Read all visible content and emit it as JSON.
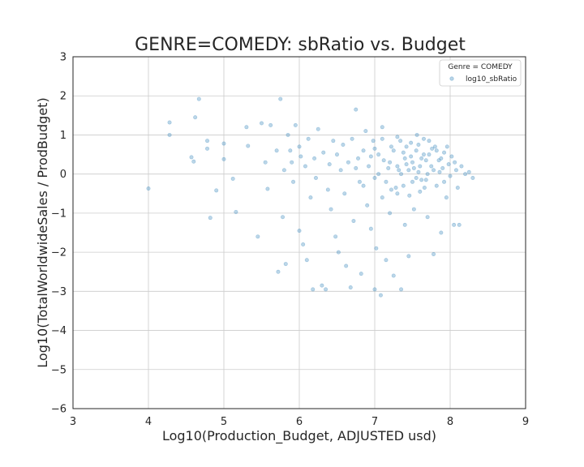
{
  "chart_data": {
    "type": "scatter",
    "title": "GENRE=COMEDY: sbRatio vs. Budget",
    "xlabel": "Log10(Production_Budget, ADJUSTED usd)",
    "ylabel": "Log10(TotalWorldwideSales / ProdBudget)",
    "xlim": [
      3,
      9
    ],
    "ylim": [
      -6,
      3
    ],
    "xticks": [
      "3",
      "4",
      "5",
      "6",
      "7",
      "8",
      "9"
    ],
    "yticks": [
      "3",
      "2",
      "1",
      "0",
      "−1",
      "−2",
      "−3",
      "−4",
      "−5",
      "−6"
    ],
    "grid": true,
    "legend": {
      "position": "top-right",
      "title": "Genre = COMEDY",
      "entries": [
        "log10_sbRatio"
      ]
    },
    "colors": {
      "point": "#1f77b4",
      "grid": "#cccccc",
      "text": "#262626"
    },
    "series": [
      {
        "name": "log10_sbRatio",
        "points": [
          [
            4.0,
            -0.37
          ],
          [
            4.28,
            1.32
          ],
          [
            4.28,
            1.0
          ],
          [
            4.62,
            1.45
          ],
          [
            4.67,
            1.92
          ],
          [
            4.57,
            0.43
          ],
          [
            4.6,
            0.32
          ],
          [
            4.78,
            0.85
          ],
          [
            4.78,
            0.65
          ],
          [
            4.82,
            -1.12
          ],
          [
            4.9,
            -0.42
          ],
          [
            5.0,
            0.78
          ],
          [
            5.0,
            0.38
          ],
          [
            5.12,
            -0.12
          ],
          [
            5.16,
            -0.97
          ],
          [
            5.3,
            1.2
          ],
          [
            5.32,
            0.72
          ],
          [
            5.45,
            -1.6
          ],
          [
            5.5,
            1.3
          ],
          [
            5.55,
            0.3
          ],
          [
            5.58,
            -0.38
          ],
          [
            5.62,
            1.25
          ],
          [
            5.7,
            0.6
          ],
          [
            5.72,
            -2.5
          ],
          [
            5.75,
            1.92
          ],
          [
            5.78,
            -1.1
          ],
          [
            5.8,
            0.1
          ],
          [
            5.82,
            -2.3
          ],
          [
            5.85,
            1.0
          ],
          [
            5.88,
            0.6
          ],
          [
            5.9,
            0.3
          ],
          [
            5.92,
            -0.2
          ],
          [
            5.95,
            1.25
          ],
          [
            6.0,
            0.7
          ],
          [
            6.0,
            -1.45
          ],
          [
            6.02,
            0.45
          ],
          [
            6.05,
            -1.8
          ],
          [
            6.08,
            0.2
          ],
          [
            6.1,
            -2.2
          ],
          [
            6.12,
            0.9
          ],
          [
            6.15,
            -0.6
          ],
          [
            6.18,
            -2.95
          ],
          [
            6.2,
            0.4
          ],
          [
            6.22,
            -0.1
          ],
          [
            6.25,
            1.15
          ],
          [
            6.3,
            -2.85
          ],
          [
            6.32,
            0.55
          ],
          [
            6.35,
            -2.95
          ],
          [
            6.38,
            -0.4
          ],
          [
            6.4,
            0.25
          ],
          [
            6.42,
            -0.9
          ],
          [
            6.45,
            0.85
          ],
          [
            6.48,
            -1.6
          ],
          [
            6.5,
            0.5
          ],
          [
            6.52,
            -2.0
          ],
          [
            6.55,
            0.1
          ],
          [
            6.58,
            0.75
          ],
          [
            6.6,
            -0.5
          ],
          [
            6.62,
            -2.35
          ],
          [
            6.65,
            0.3
          ],
          [
            6.68,
            -2.9
          ],
          [
            6.7,
            0.9
          ],
          [
            6.72,
            -1.2
          ],
          [
            6.75,
            1.65
          ],
          [
            6.78,
            0.4
          ],
          [
            6.8,
            -0.2
          ],
          [
            6.82,
            -2.55
          ],
          [
            6.85,
            0.6
          ],
          [
            6.88,
            1.1
          ],
          [
            6.9,
            -0.8
          ],
          [
            6.92,
            0.2
          ],
          [
            6.95,
            -1.4
          ],
          [
            6.98,
            0.85
          ],
          [
            7.0,
            -2.95
          ],
          [
            7.0,
            -0.1
          ],
          [
            7.02,
            -1.9
          ],
          [
            7.05,
            0.5
          ],
          [
            7.08,
            -3.1
          ],
          [
            7.1,
            1.2
          ],
          [
            7.1,
            -0.6
          ],
          [
            7.12,
            0.35
          ],
          [
            7.15,
            -2.2
          ],
          [
            7.18,
            0.15
          ],
          [
            7.2,
            -1.0
          ],
          [
            7.22,
            0.7
          ],
          [
            7.25,
            -2.6
          ],
          [
            7.28,
            -0.35
          ],
          [
            7.3,
            0.95
          ],
          [
            7.32,
            0.1
          ],
          [
            7.35,
            -2.95
          ],
          [
            7.38,
            0.55
          ],
          [
            7.4,
            -1.3
          ],
          [
            7.42,
            0.25
          ],
          [
            7.45,
            -2.1
          ],
          [
            7.48,
            0.8
          ],
          [
            7.5,
            -0.2
          ],
          [
            7.52,
            -0.9
          ],
          [
            7.55,
            0.6
          ],
          [
            7.58,
            0.05
          ],
          [
            7.6,
            -0.45
          ],
          [
            7.62,
            0.4
          ],
          [
            7.65,
            0.9
          ],
          [
            7.68,
            -0.15
          ],
          [
            7.7,
            -1.1
          ],
          [
            7.72,
            0.5
          ],
          [
            7.75,
            0.2
          ],
          [
            7.78,
            -2.05
          ],
          [
            7.8,
            0.7
          ],
          [
            7.82,
            -0.3
          ],
          [
            7.85,
            0.35
          ],
          [
            7.88,
            -1.5
          ],
          [
            7.9,
            0.15
          ],
          [
            7.92,
            0.55
          ],
          [
            7.95,
            -0.6
          ],
          [
            7.98,
            0.25
          ],
          [
            8.0,
            -0.05
          ],
          [
            8.02,
            0.45
          ],
          [
            8.05,
            -1.3
          ],
          [
            8.08,
            0.1
          ],
          [
            8.1,
            -0.35
          ],
          [
            8.12,
            -1.3
          ],
          [
            8.15,
            0.2
          ],
          [
            8.2,
            0.0
          ],
          [
            8.25,
            0.05
          ],
          [
            8.3,
            -0.1
          ],
          [
            7.3,
            0.2
          ],
          [
            7.35,
            0.0
          ],
          [
            7.4,
            0.4
          ],
          [
            7.45,
            0.1
          ],
          [
            7.5,
            0.3
          ],
          [
            7.55,
            -0.1
          ],
          [
            7.6,
            0.2
          ],
          [
            7.65,
            0.5
          ],
          [
            7.7,
            0.0
          ],
          [
            7.25,
            0.6
          ],
          [
            7.2,
            0.3
          ],
          [
            7.15,
            -0.2
          ],
          [
            7.38,
            -0.3
          ],
          [
            7.42,
            0.7
          ],
          [
            7.48,
            0.45
          ],
          [
            7.52,
            0.15
          ],
          [
            7.58,
            0.75
          ],
          [
            7.62,
            -0.15
          ],
          [
            7.68,
            0.35
          ],
          [
            7.72,
            0.85
          ],
          [
            7.78,
            0.1
          ],
          [
            7.82,
            0.6
          ],
          [
            7.88,
            0.4
          ],
          [
            7.92,
            -0.2
          ],
          [
            7.3,
            -0.5
          ],
          [
            7.05,
            0.0
          ],
          [
            6.95,
            0.45
          ],
          [
            6.85,
            -0.3
          ],
          [
            6.75,
            0.15
          ],
          [
            7.0,
            0.65
          ],
          [
            7.1,
            0.9
          ],
          [
            7.22,
            -0.4
          ],
          [
            7.34,
            0.85
          ],
          [
            7.46,
            -0.55
          ],
          [
            7.56,
            1.0
          ],
          [
            7.66,
            -0.35
          ],
          [
            7.76,
            0.65
          ],
          [
            7.86,
            0.05
          ],
          [
            7.96,
            0.7
          ],
          [
            8.06,
            0.3
          ]
        ]
      }
    ]
  }
}
